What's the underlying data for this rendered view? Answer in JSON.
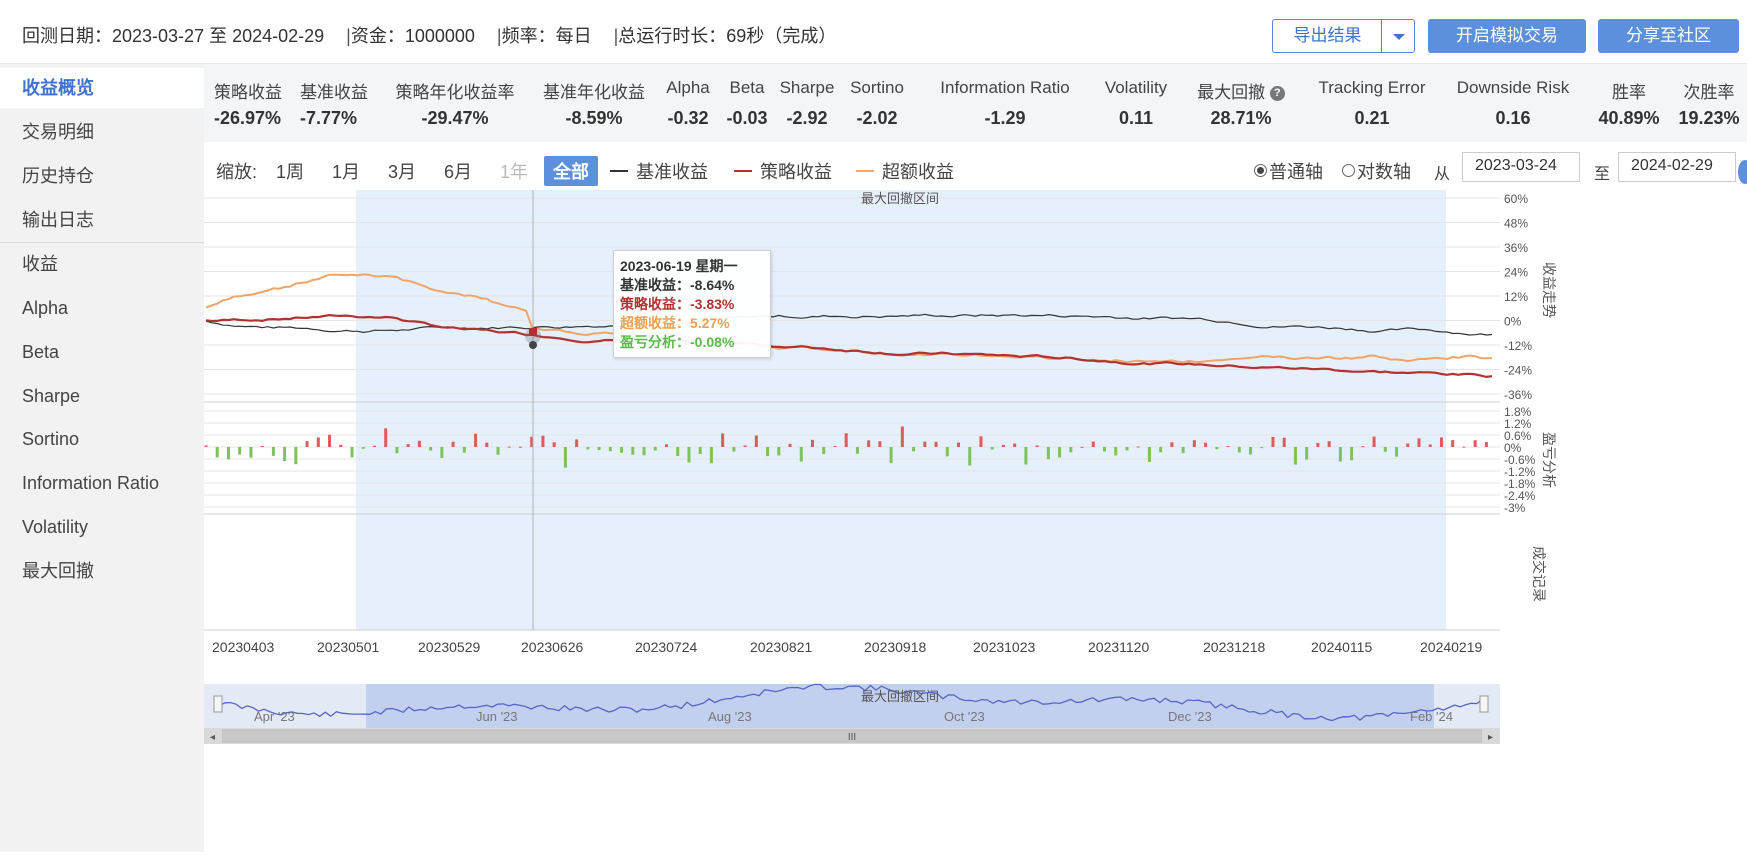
{
  "header": {
    "period_label": "回测日期：",
    "period_value": "2023-03-27 至 2024-02-29",
    "capital_label": "资金：",
    "capital_value": "1000000",
    "freq_label": "频率：",
    "freq_value": "每日",
    "runtime_label": "总运行时长：",
    "runtime_value": "69秒（完成）",
    "separator": "|",
    "export_label": "导出结果",
    "sim_trade_label": "开启模拟交易",
    "share_label": "分享至社区"
  },
  "sidebar": {
    "items": [
      {
        "label": "收益概览",
        "active": true
      },
      {
        "label": "交易明细"
      },
      {
        "label": "历史持仓"
      },
      {
        "label": "输出日志"
      },
      {
        "label": "收益"
      },
      {
        "label": "Alpha"
      },
      {
        "label": "Beta"
      },
      {
        "label": "Sharpe"
      },
      {
        "label": "Sortino"
      },
      {
        "label": "Information Ratio"
      },
      {
        "label": "Volatility"
      },
      {
        "label": "最大回撤"
      }
    ]
  },
  "stats": [
    {
      "key": "策略收益",
      "value": "-26.97%",
      "color": "#333333"
    },
    {
      "key": "基准收益",
      "value": "-7.77%"
    },
    {
      "key": "策略年化收益率",
      "value": "-29.47%"
    },
    {
      "key": "基准年化收益",
      "value": "-8.59%"
    },
    {
      "key": "Alpha",
      "value": "-0.32"
    },
    {
      "key": "Beta",
      "value": "-0.03"
    },
    {
      "key": "Sharpe",
      "value": "-2.92"
    },
    {
      "key": "Sortino",
      "value": "-2.02"
    },
    {
      "key": "Information Ratio",
      "value": "-1.29"
    },
    {
      "key": "Volatility",
      "value": "0.11"
    },
    {
      "key": "最大回撤",
      "value": "28.71%",
      "help": "?"
    },
    {
      "key": "Tracking Error",
      "value": "0.21"
    },
    {
      "key": "Downside Risk",
      "value": "0.16"
    },
    {
      "key": "胜率",
      "value": "40.89%"
    },
    {
      "key": "次胜率",
      "value": "19.23%"
    }
  ],
  "toolbar": {
    "zoom_label": "缩放:",
    "zoom": [
      "1周",
      "1月",
      "3月",
      "6月",
      "1年",
      "全部"
    ],
    "zoom_selected": "全部",
    "zoom_disabled": "1年",
    "legend": [
      {
        "name": "基准收益",
        "color": "#333333"
      },
      {
        "name": "策略收益",
        "color": "#b23232"
      },
      {
        "name": "超额收益",
        "color": "#f0a468"
      }
    ],
    "axis_normal": "普通轴",
    "axis_log": "对数轴",
    "from_label": "从",
    "from_value": "2023-03-24",
    "to_label": "至",
    "to_value": "2024-02-29"
  },
  "chart": {
    "drawdown_label": "最大回撤区间",
    "right_title_main": "收益走势",
    "right_title_pnl": "盈亏分析",
    "right_title_trades": "成交记录",
    "y_ticks_main": [
      "60%",
      "48%",
      "36%",
      "24%",
      "12%",
      "0%",
      "-12%",
      "-24%",
      "-36%"
    ],
    "y_ticks_pnl": [
      "1.8%",
      "1.2%",
      "0.6%",
      "0%",
      "-0.6%",
      "-1.2%",
      "-1.8%",
      "-2.4%",
      "-3%"
    ],
    "x_ticks": [
      "20230403",
      "20230501",
      "20230529",
      "20230626",
      "20230724",
      "20230821",
      "20230918",
      "20231023",
      "20231120",
      "20231218",
      "20240115",
      "20240219"
    ],
    "nav_ticks": [
      "Apr '23",
      "Jun '23",
      "Aug '23",
      "Oct '23",
      "Dec '23",
      "Feb '24"
    ],
    "nav_drawdown_label": "最大回撤区间",
    "scroll_grip": "III",
    "colors": {
      "benchmark": "#333333",
      "strategy": "#b23232",
      "excess": "#f0a468",
      "bar_up": "#e05a5a",
      "bar_down": "#7cc35a",
      "highlight": "#e6effc",
      "navigator": "#5566c8"
    }
  },
  "tooltip": {
    "date": "2023-06-19 星期一",
    "benchmark_label": "基准收益：",
    "benchmark_value": "-8.64%",
    "strategy_label": "策略收益：",
    "strategy_value": "-3.83%",
    "excess_label": "超额收益：",
    "excess_value": "5.27%",
    "pnl_label": "盈亏分析：",
    "pnl_value": "-0.08%"
  }
}
